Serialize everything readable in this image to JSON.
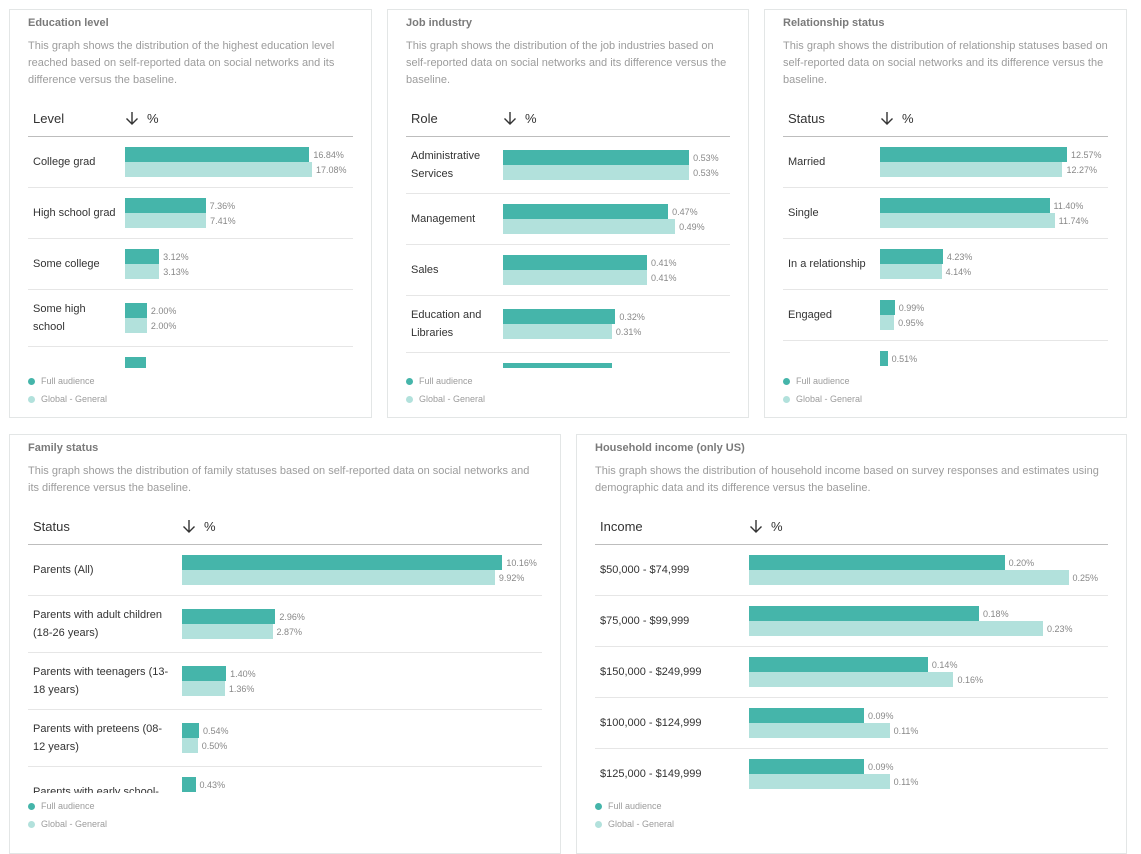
{
  "chart_data": [
    {
      "type": "bar",
      "title": "Education level",
      "description": "This graph shows the distribution of the highest education level reached based on self-reported data on social networks and its difference versus the baseline.",
      "label_header": "Level",
      "value_header": "%",
      "categories": [
        "College grad",
        "High school grad",
        "Some college",
        "Some high school",
        null
      ],
      "series": [
        {
          "name": "Full audience",
          "color": "#45b5aa",
          "values": [
            16.84,
            7.36,
            3.12,
            2,
            1.9
          ],
          "value_labels": [
            "16.84%",
            "7.36%",
            "3.12%",
            "2.00%",
            null
          ]
        },
        {
          "name": "Global - General",
          "color": "#b2e1dc",
          "values": [
            17.08,
            7.41,
            3.13,
            2,
            null
          ],
          "value_labels": [
            "17.08%",
            "7.41%",
            "3.13%",
            "2.00%",
            null
          ]
        }
      ]
    },
    {
      "type": "bar",
      "title": "Job industry",
      "description": "This graph shows the distribution of the job industries based on self-reported data on social networks and its difference versus the baseline.",
      "label_header": "Role",
      "value_header": "%",
      "categories": [
        "Administrative Services",
        "Management",
        "Sales",
        "Education and Libraries",
        null
      ],
      "series": [
        {
          "name": "Full audience",
          "color": "#45b5aa",
          "values": [
            0.53,
            0.47,
            0.41,
            0.32,
            0.31
          ],
          "value_labels": [
            "0.53%",
            "0.47%",
            "0.41%",
            "0.32%",
            null
          ]
        },
        {
          "name": "Global - General",
          "color": "#b2e1dc",
          "values": [
            0.53,
            0.49,
            0.41,
            0.31,
            null
          ],
          "value_labels": [
            "0.53%",
            "0.49%",
            "0.41%",
            "0.31%",
            null
          ]
        }
      ]
    },
    {
      "type": "bar",
      "title": "Relationship status",
      "description": "This graph shows the distribution of relationship statuses based on self-reported data on social networks and its difference versus the baseline.",
      "label_header": "Status",
      "value_header": "%",
      "categories": [
        "Married",
        "Single",
        "In a relationship",
        "Engaged",
        null
      ],
      "series": [
        {
          "name": "Full audience",
          "color": "#45b5aa",
          "values": [
            12.57,
            11.4,
            4.23,
            0.99,
            0.51
          ],
          "value_labels": [
            "12.57%",
            "11.40%",
            "4.23%",
            "0.99%",
            "0.51%"
          ]
        },
        {
          "name": "Global - General",
          "color": "#b2e1dc",
          "values": [
            12.27,
            11.74,
            4.14,
            0.95,
            null
          ],
          "value_labels": [
            "12.27%",
            "11.74%",
            "4.14%",
            "0.95%",
            null
          ]
        }
      ]
    },
    {
      "type": "bar",
      "title": "Family status",
      "description": "This graph shows the distribution of family statuses based on self-reported data on social networks and its difference versus the baseline.",
      "label_header": "Status",
      "value_header": "%",
      "categories": [
        "Parents (All)",
        "Parents with adult children (18-26 years)",
        "Parents with teenagers (13-18 years)",
        "Parents with preteens (08-12 years)",
        "Parents with early school-"
      ],
      "series": [
        {
          "name": "Full audience",
          "color": "#45b5aa",
          "values": [
            10.16,
            2.96,
            1.4,
            0.54,
            0.43
          ],
          "value_labels": [
            "10.16%",
            "2.96%",
            "1.40%",
            "0.54%",
            "0.43%"
          ]
        },
        {
          "name": "Global - General",
          "color": "#b2e1dc",
          "values": [
            9.92,
            2.87,
            1.36,
            0.5,
            null
          ],
          "value_labels": [
            "9.92%",
            "2.87%",
            "1.36%",
            "0.50%",
            null
          ]
        }
      ]
    },
    {
      "type": "bar",
      "title": "Household income (only US)",
      "description": "This graph shows the distribution of household income based on survey responses and estimates using demographic data and its difference versus the baseline.",
      "label_header": "Income",
      "value_header": "%",
      "categories": [
        "$50,000 - $74,999",
        "$75,000 - $99,999",
        "$150,000 - $249,999",
        "$100,000 - $124,999",
        "$125,000 - $149,999"
      ],
      "series": [
        {
          "name": "Full audience",
          "color": "#45b5aa",
          "values": [
            0.2,
            0.18,
            0.14,
            0.09,
            0.09
          ],
          "value_labels": [
            "0.20%",
            "0.18%",
            "0.14%",
            "0.09%",
            "0.09%"
          ]
        },
        {
          "name": "Global - General",
          "color": "#b2e1dc",
          "values": [
            0.25,
            0.23,
            0.16,
            0.11,
            0.11
          ],
          "value_labels": [
            "0.25%",
            "0.23%",
            "0.16%",
            "0.11%",
            "0.11%"
          ]
        }
      ]
    }
  ]
}
